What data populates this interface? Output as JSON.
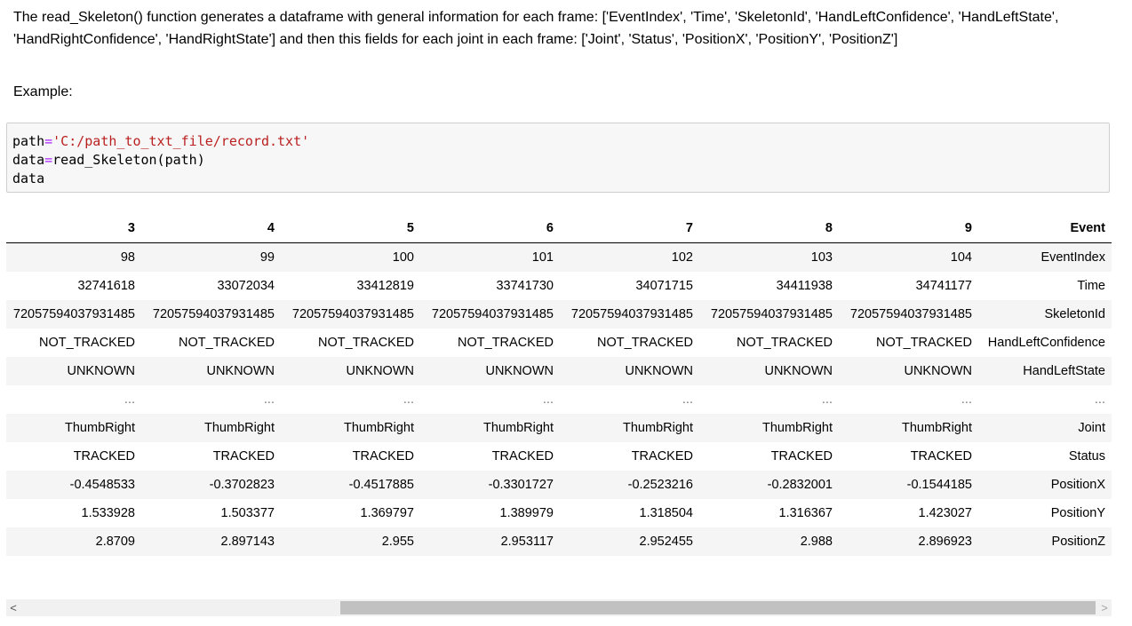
{
  "markdown": {
    "description": "The read_Skeleton() function generates a dataframe with general information for each frame: ['EventIndex', 'Time', 'SkeletonId', 'HandLeftConfidence', 'HandLeftState', 'HandRightConfidence', 'HandRightState'] and then this fields for each joint in each frame: ['Joint', 'Status', 'PositionX', 'PositionY', 'PositionZ']",
    "example_label": "Example:"
  },
  "code": {
    "line1_var": "path",
    "line1_op": "=",
    "line1_str": "'C:/path_to_txt_file/record.txt'",
    "line2_var": "data",
    "line2_op": "=",
    "line2_call": "read_Skeleton(path)",
    "line3": "data"
  },
  "table": {
    "headers": [
      "3",
      "4",
      "5",
      "6",
      "7",
      "8",
      "9",
      "Event"
    ],
    "rows": [
      [
        "98",
        "99",
        "100",
        "101",
        "102",
        "103",
        "104",
        "EventIndex"
      ],
      [
        "32741618",
        "33072034",
        "33412819",
        "33741730",
        "34071715",
        "34411938",
        "34741177",
        "Time"
      ],
      [
        "72057594037931485",
        "72057594037931485",
        "72057594037931485",
        "72057594037931485",
        "72057594037931485",
        "72057594037931485",
        "72057594037931485",
        "SkeletonId"
      ],
      [
        "NOT_TRACKED",
        "NOT_TRACKED",
        "NOT_TRACKED",
        "NOT_TRACKED",
        "NOT_TRACKED",
        "NOT_TRACKED",
        "NOT_TRACKED",
        "HandLeftConfidence"
      ],
      [
        "UNKNOWN",
        "UNKNOWN",
        "UNKNOWN",
        "UNKNOWN",
        "UNKNOWN",
        "UNKNOWN",
        "UNKNOWN",
        "HandLeftState"
      ],
      [
        "...",
        "...",
        "...",
        "...",
        "...",
        "...",
        "...",
        "..."
      ],
      [
        "ThumbRight",
        "ThumbRight",
        "ThumbRight",
        "ThumbRight",
        "ThumbRight",
        "ThumbRight",
        "ThumbRight",
        "Joint"
      ],
      [
        "TRACKED",
        "TRACKED",
        "TRACKED",
        "TRACKED",
        "TRACKED",
        "TRACKED",
        "TRACKED",
        "Status"
      ],
      [
        "-0.4548533",
        "-0.3702823",
        "-0.4517885",
        "-0.3301727",
        "-0.2523216",
        "-0.2832001",
        "-0.1544185",
        "PositionX"
      ],
      [
        "1.533928",
        "1.503377",
        "1.369797",
        "1.389979",
        "1.318504",
        "1.316367",
        "1.423027",
        "PositionY"
      ],
      [
        "2.8709",
        "2.897143",
        "2.955",
        "2.953117",
        "2.952455",
        "2.988",
        "2.896923",
        "PositionZ"
      ]
    ]
  },
  "scrollbar": {
    "left_arrow": "<",
    "right_arrow": ">",
    "position_fraction": 0.3
  }
}
